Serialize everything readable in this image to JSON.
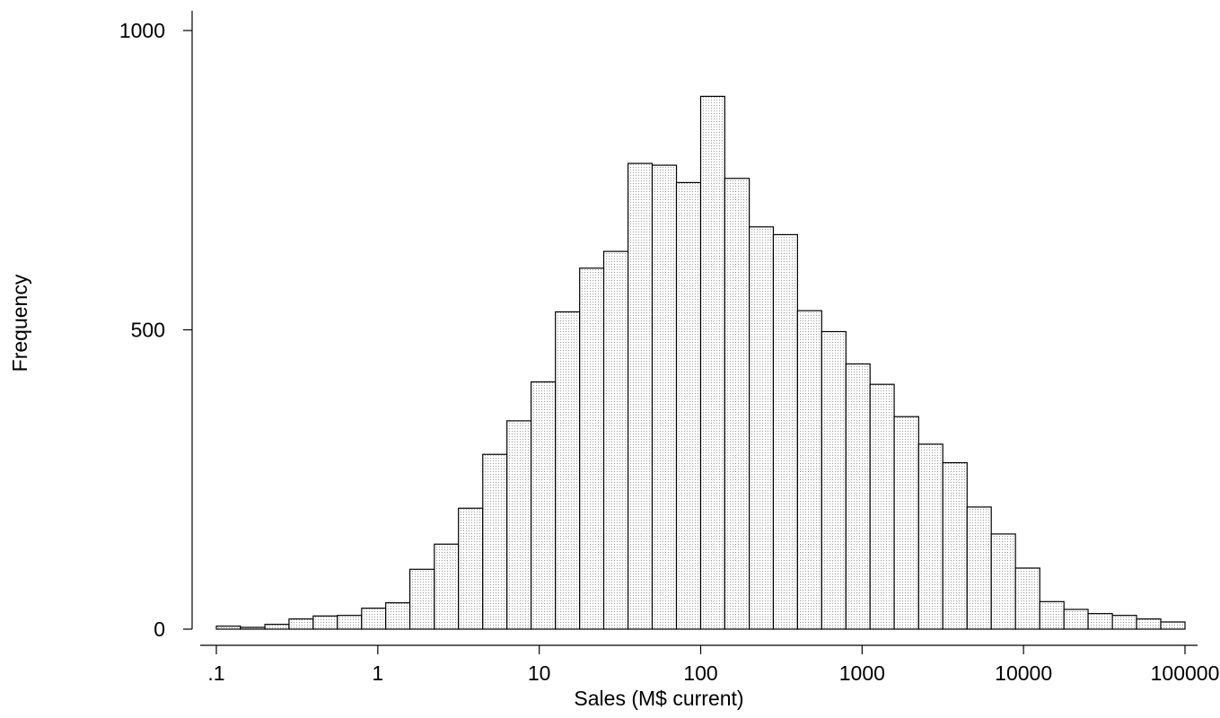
{
  "chart_data": {
    "type": "bar",
    "subtype": "histogram",
    "xlabel": "Sales (M$ current)",
    "ylabel": "Frequency",
    "x_scale": "log10",
    "xlim": [
      0.1,
      100000
    ],
    "ylim": [
      0,
      1000
    ],
    "x_ticks": [
      {
        "value": 0.1,
        "label": ".1"
      },
      {
        "value": 1,
        "label": "1"
      },
      {
        "value": 10,
        "label": "10"
      },
      {
        "value": 100,
        "label": "100"
      },
      {
        "value": 1000,
        "label": "1000"
      },
      {
        "value": 10000,
        "label": "10000"
      },
      {
        "value": 100000,
        "label": "100000"
      }
    ],
    "y_ticks": [
      {
        "value": 0,
        "label": "0"
      },
      {
        "value": 500,
        "label": "500"
      },
      {
        "value": 1000,
        "label": "1000"
      }
    ],
    "bins_per_decade": 6.7,
    "bins": [
      {
        "x_start": 0.1,
        "x_end": 0.141,
        "frequency": 5
      },
      {
        "x_start": 0.141,
        "x_end": 0.2,
        "frequency": 3
      },
      {
        "x_start": 0.2,
        "x_end": 0.282,
        "frequency": 8
      },
      {
        "x_start": 0.282,
        "x_end": 0.398,
        "frequency": 17
      },
      {
        "x_start": 0.398,
        "x_end": 0.562,
        "frequency": 22
      },
      {
        "x_start": 0.562,
        "x_end": 0.794,
        "frequency": 23
      },
      {
        "x_start": 0.794,
        "x_end": 1.12,
        "frequency": 35
      },
      {
        "x_start": 1.12,
        "x_end": 1.58,
        "frequency": 44
      },
      {
        "x_start": 1.58,
        "x_end": 2.24,
        "frequency": 100
      },
      {
        "x_start": 2.24,
        "x_end": 3.16,
        "frequency": 142
      },
      {
        "x_start": 3.16,
        "x_end": 4.47,
        "frequency": 202
      },
      {
        "x_start": 4.47,
        "x_end": 6.31,
        "frequency": 292
      },
      {
        "x_start": 6.31,
        "x_end": 8.91,
        "frequency": 348
      },
      {
        "x_start": 8.91,
        "x_end": 12.6,
        "frequency": 413
      },
      {
        "x_start": 12.6,
        "x_end": 17.8,
        "frequency": 530
      },
      {
        "x_start": 17.8,
        "x_end": 25.1,
        "frequency": 603
      },
      {
        "x_start": 25.1,
        "x_end": 35.5,
        "frequency": 631
      },
      {
        "x_start": 35.5,
        "x_end": 50.1,
        "frequency": 778
      },
      {
        "x_start": 50.1,
        "x_end": 70.8,
        "frequency": 775
      },
      {
        "x_start": 70.8,
        "x_end": 100,
        "frequency": 746
      },
      {
        "x_start": 100,
        "x_end": 141,
        "frequency": 890
      },
      {
        "x_start": 141,
        "x_end": 200,
        "frequency": 753
      },
      {
        "x_start": 200,
        "x_end": 282,
        "frequency": 672
      },
      {
        "x_start": 282,
        "x_end": 398,
        "frequency": 659
      },
      {
        "x_start": 398,
        "x_end": 562,
        "frequency": 532
      },
      {
        "x_start": 562,
        "x_end": 794,
        "frequency": 497
      },
      {
        "x_start": 794,
        "x_end": 1120,
        "frequency": 443
      },
      {
        "x_start": 1120,
        "x_end": 1580,
        "frequency": 409
      },
      {
        "x_start": 1580,
        "x_end": 2240,
        "frequency": 355
      },
      {
        "x_start": 2240,
        "x_end": 3160,
        "frequency": 309
      },
      {
        "x_start": 3160,
        "x_end": 4470,
        "frequency": 278
      },
      {
        "x_start": 4470,
        "x_end": 6310,
        "frequency": 204
      },
      {
        "x_start": 6310,
        "x_end": 8910,
        "frequency": 159
      },
      {
        "x_start": 8910,
        "x_end": 12600,
        "frequency": 102
      },
      {
        "x_start": 12600,
        "x_end": 17800,
        "frequency": 46
      },
      {
        "x_start": 17800,
        "x_end": 25100,
        "frequency": 33
      },
      {
        "x_start": 25100,
        "x_end": 35500,
        "frequency": 26
      },
      {
        "x_start": 35500,
        "x_end": 50100,
        "frequency": 23
      },
      {
        "x_start": 50100,
        "x_end": 70800,
        "frequency": 17
      },
      {
        "x_start": 70800,
        "x_end": 100000,
        "frequency": 12
      }
    ],
    "grid": false,
    "legend": "none",
    "bar_fill": "#ffffff",
    "bar_pattern_color": "#9a9a9a",
    "bar_stroke": "#000000"
  }
}
